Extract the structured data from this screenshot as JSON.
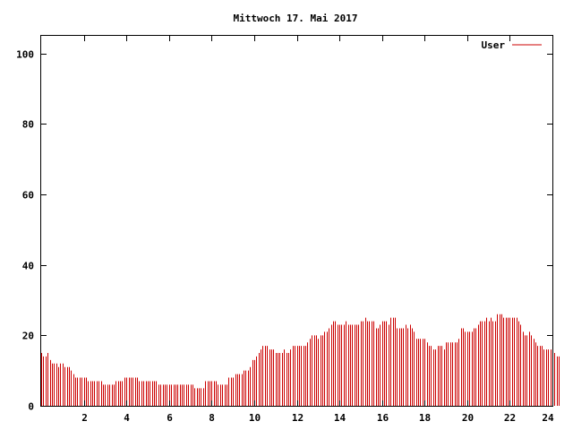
{
  "chart_data": {
    "type": "bar",
    "title": "Mittwoch 17. Mai 2017",
    "xlabel": "",
    "ylabel": "",
    "xlim": [
      0,
      24
    ],
    "ylim": [
      0,
      105
    ],
    "x_ticks": [
      2,
      4,
      6,
      8,
      10,
      12,
      14,
      16,
      18,
      20,
      22,
      24
    ],
    "y_ticks": [
      0,
      20,
      40,
      60,
      80,
      100
    ],
    "grid": false,
    "legend": {
      "position": "top-right"
    },
    "series": [
      {
        "name": "User",
        "color": "#cc0000",
        "interval_hours": 0.1,
        "values": [
          15,
          14,
          14,
          15,
          13,
          12,
          12,
          12,
          11,
          12,
          12,
          11,
          11,
          11,
          10,
          9,
          8,
          8,
          8,
          8,
          8,
          8,
          7,
          7,
          7,
          7,
          7,
          7,
          7,
          6,
          6,
          6,
          6,
          6,
          6,
          7,
          7,
          7,
          7,
          8,
          8,
          8,
          8,
          8,
          8,
          8,
          7,
          7,
          7,
          7,
          7,
          7,
          7,
          7,
          7,
          6,
          6,
          6,
          6,
          6,
          6,
          6,
          6,
          6,
          6,
          6,
          6,
          6,
          6,
          6,
          6,
          6,
          5,
          5,
          5,
          5,
          5,
          7,
          7,
          7,
          7,
          7,
          7,
          6,
          6,
          6,
          6,
          6,
          8,
          8,
          8,
          9,
          9,
          9,
          9,
          10,
          10,
          10,
          11,
          13,
          13,
          14,
          15,
          16,
          17,
          17,
          17,
          16,
          16,
          16,
          15,
          15,
          15,
          15,
          16,
          15,
          15,
          16,
          17,
          17,
          17,
          17,
          17,
          17,
          17,
          18,
          19,
          20,
          20,
          20,
          19,
          20,
          20,
          21,
          21,
          22,
          23,
          24,
          24,
          23,
          23,
          23,
          23,
          24,
          23,
          23,
          23,
          23,
          23,
          23,
          24,
          24,
          25,
          24,
          24,
          24,
          24,
          22,
          22,
          23,
          24,
          24,
          24,
          23,
          25,
          25,
          25,
          22,
          22,
          22,
          22,
          23,
          22,
          23,
          22,
          21,
          19,
          19,
          19,
          19,
          19,
          18,
          17,
          17,
          16,
          16,
          17,
          17,
          17,
          16,
          18,
          18,
          18,
          18,
          18,
          18,
          19,
          22,
          22,
          21,
          21,
          21,
          21,
          22,
          22,
          23,
          24,
          24,
          24,
          25,
          24,
          25,
          24,
          24,
          26,
          26,
          26,
          25,
          25,
          25,
          25,
          25,
          25,
          25,
          24,
          23,
          21,
          20,
          20,
          21,
          20,
          19,
          18,
          17,
          17,
          17,
          16,
          16,
          16,
          16,
          15,
          15,
          14,
          14
        ]
      }
    ]
  }
}
